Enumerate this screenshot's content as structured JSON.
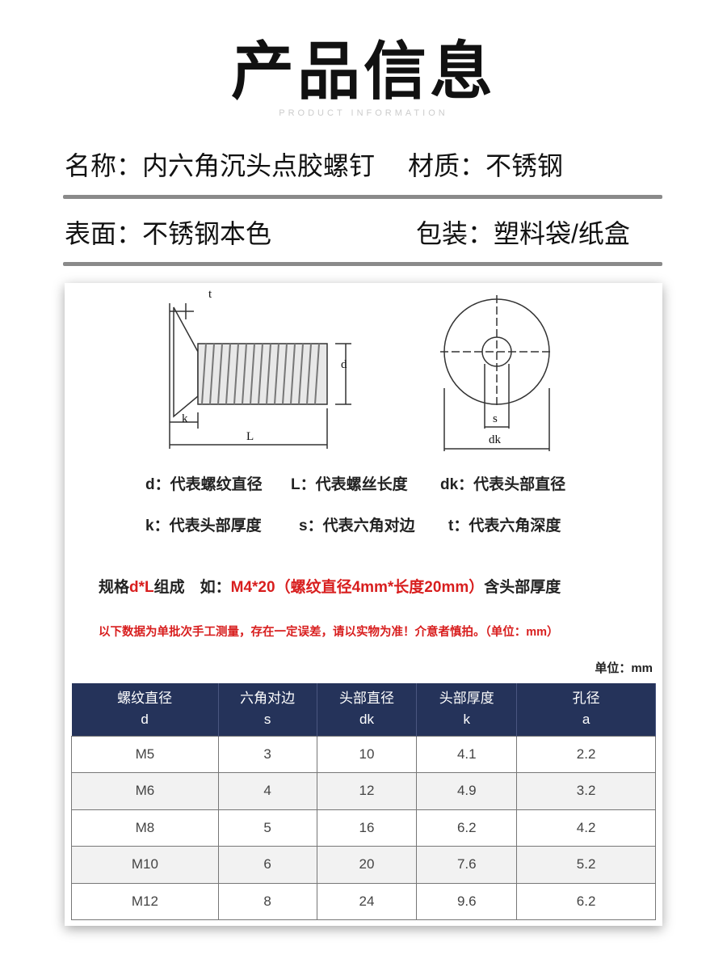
{
  "header": {
    "title": "产品信息",
    "subtitle": "PRODUCT INFORMATION"
  },
  "info": {
    "name": "名称：内六角沉头点胶螺钉",
    "material": "材质：不锈钢",
    "surface": "表面：不锈钢本色",
    "packaging": "包装：塑料袋/纸盒"
  },
  "diagram": {
    "labels": {
      "t": "t",
      "k": "k",
      "L": "L",
      "d": "d",
      "s": "s",
      "dk": "dk"
    }
  },
  "legend": {
    "row1": [
      "d：代表螺纹直径",
      "L：代表螺丝长度",
      "dk：代表头部直径"
    ],
    "row2": [
      "k：代表头部厚度",
      "s：代表六角对边",
      "t：代表六角深度"
    ]
  },
  "spec": {
    "prefix": "规格",
    "dl": "d*L",
    "suffix": "组成　如：",
    "example": "M4*20（螺纹直径4mm*长度20mm）",
    "tail": "含头部厚度"
  },
  "notice": "以下数据为单批次手工测量，存在一定误差，请以实物为准！介意者慎拍。（单位：mm）",
  "table": {
    "unit": "单位：mm",
    "headers": [
      [
        "螺纹直径",
        "d"
      ],
      [
        "六角对边",
        "s"
      ],
      [
        "头部直径",
        "dk"
      ],
      [
        "头部厚度",
        "k"
      ],
      [
        "孔径",
        "a"
      ]
    ],
    "rows": [
      [
        "M5",
        "3",
        "10",
        "4.1",
        "2.2"
      ],
      [
        "M6",
        "4",
        "12",
        "4.9",
        "3.2"
      ],
      [
        "M8",
        "5",
        "16",
        "6.2",
        "4.2"
      ],
      [
        "M10",
        "6",
        "20",
        "7.6",
        "5.2"
      ],
      [
        "M12",
        "8",
        "24",
        "9.6",
        "6.2"
      ]
    ]
  },
  "colors": {
    "header_bg": "#25335a",
    "accent_red": "#d81e1e"
  }
}
